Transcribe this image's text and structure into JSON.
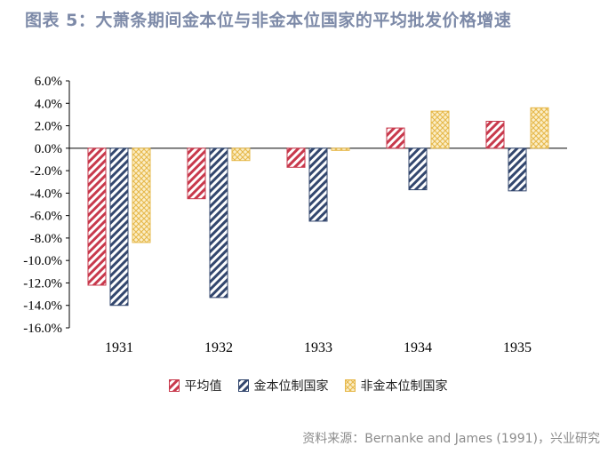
{
  "title": "图表 5：大萧条期间金本位与非金本位国家的平均批发价格增速",
  "source": "资料来源：Bernanke and James (1991)，兴业研究",
  "colors": {
    "avg": "#c8394c",
    "gold": "#33476e",
    "nongold": "#e6b84a"
  },
  "chart_data": {
    "type": "bar",
    "categories": [
      "1931",
      "1932",
      "1933",
      "1934",
      "1935"
    ],
    "series": [
      {
        "name": "平均值",
        "values": [
          -12.2,
          -4.5,
          -1.7,
          1.8,
          2.4
        ]
      },
      {
        "name": "金本位制国家",
        "values": [
          -14.0,
          -13.3,
          -6.5,
          -3.7,
          -3.8
        ]
      },
      {
        "name": "非金本位制国家",
        "values": [
          -8.4,
          -1.1,
          -0.2,
          3.3,
          3.6
        ]
      }
    ],
    "ylim": [
      -16,
      6
    ],
    "yticks": [
      "6.0%",
      "4.0%",
      "2.0%",
      "0.0%",
      "-2.0%",
      "-4.0%",
      "-6.0%",
      "-8.0%",
      "-10.0%",
      "-12.0%",
      "-14.0%",
      "-16.0%"
    ],
    "grid": false,
    "legend_position": "bottom"
  }
}
